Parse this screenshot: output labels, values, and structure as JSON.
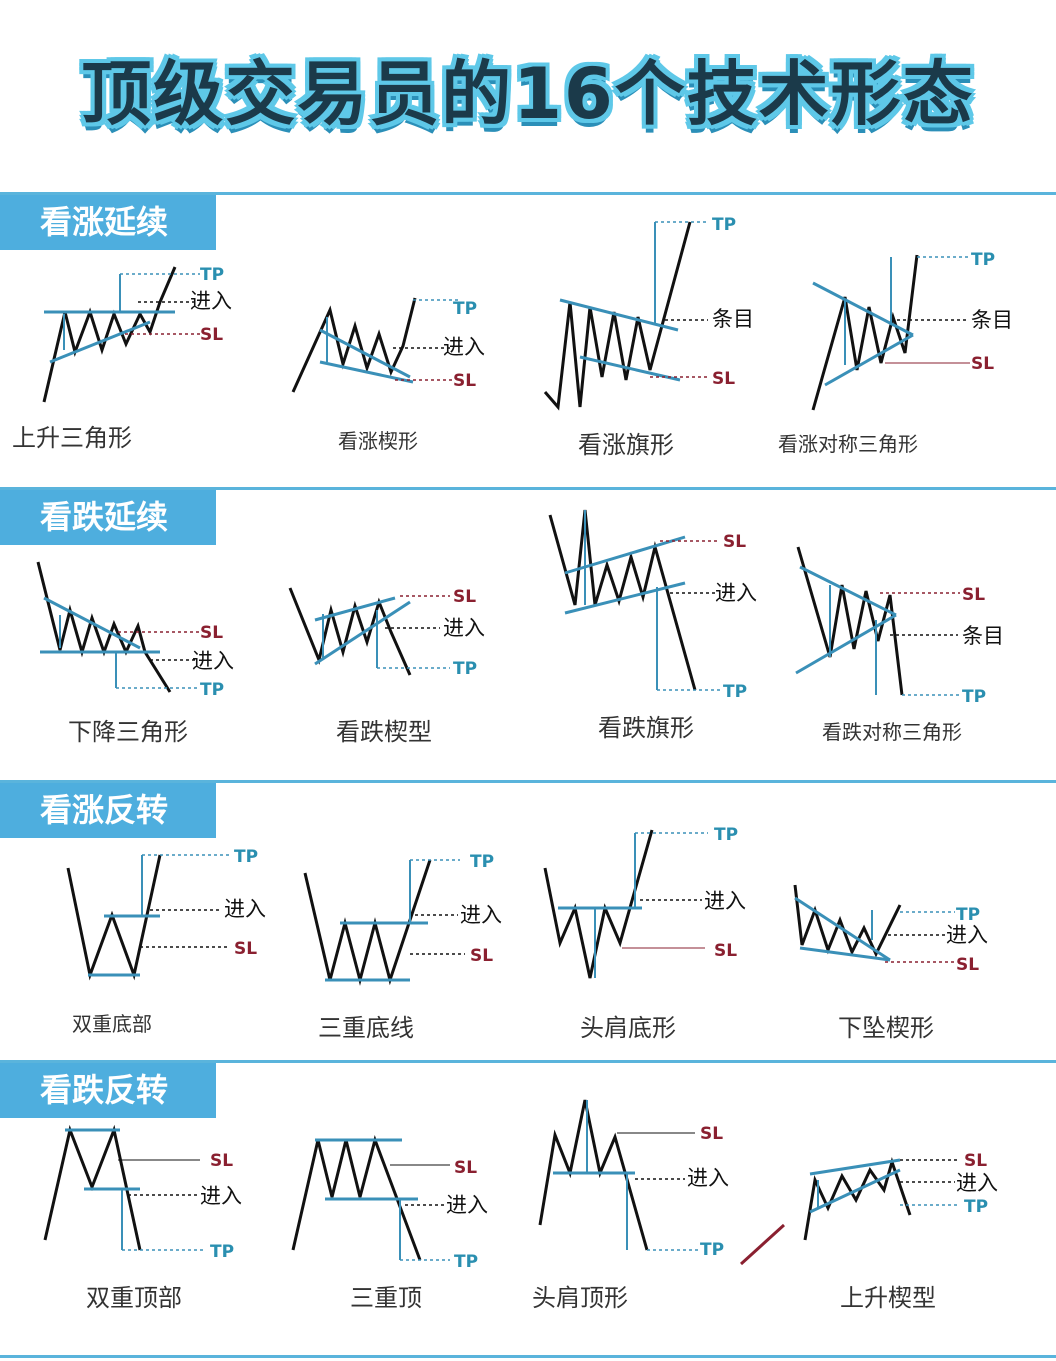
{
  "title": "顶级交易员的16个技术形态",
  "labels": {
    "tp": "TP",
    "sl": "SL",
    "entry": "进入",
    "entry_alt": "条目"
  },
  "sections": [
    {
      "name": "看涨延续",
      "patterns": [
        "上升三角形",
        "看涨楔形",
        "看涨旗形",
        "看涨对称三角形"
      ]
    },
    {
      "name": "看跌延续",
      "patterns": [
        "下降三角形",
        "看跌楔型",
        "看跌旗形",
        "看跌对称三角形"
      ]
    },
    {
      "name": "看涨反转",
      "patterns": [
        "双重底部",
        "三重底线",
        "头肩底形",
        "下坠楔形"
      ]
    },
    {
      "name": "看跌反转",
      "patterns": [
        "双重顶部",
        "三重顶",
        "头肩顶形",
        "上升楔型"
      ]
    }
  ],
  "colors": {
    "accent": "#4eaede",
    "line": "#111111",
    "guide": "#3a90b8",
    "tp": "#2a8fb0",
    "sl": "#8a2030"
  }
}
